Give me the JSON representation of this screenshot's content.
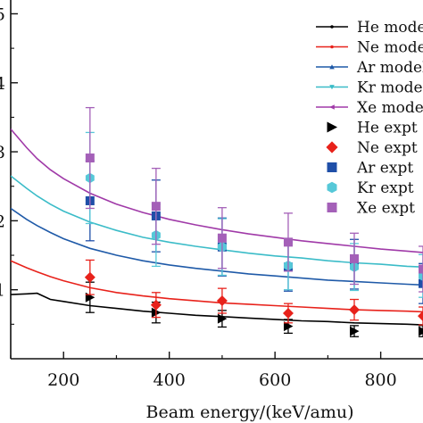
{
  "chart_data": {
    "type": "line",
    "title": "",
    "xlabel": "Beam energy/(keV/amu)",
    "ylabel": "",
    "xlim": [
      100,
      880
    ],
    "ylim": [
      0,
      5.2
    ],
    "x_ticks": [
      200,
      400,
      600,
      800
    ],
    "y_ticks": [
      1,
      2,
      3,
      4,
      5
    ],
    "y_tick_labels": [
      "1",
      "2",
      "3",
      "4",
      "5"
    ],
    "grid": false,
    "legend_position": "top-right",
    "model_x": [
      100,
      130,
      150,
      175,
      200,
      250,
      300,
      350,
      400,
      450,
      500,
      550,
      600,
      650,
      700,
      750,
      800,
      850,
      880
    ],
    "series": [
      {
        "name": "He model",
        "kind": "model",
        "color": "#000000",
        "marker": "circle",
        "values": [
          0.93,
          0.94,
          0.95,
          0.86,
          0.83,
          0.77,
          0.73,
          0.69,
          0.66,
          0.63,
          0.61,
          0.59,
          0.57,
          0.55,
          0.54,
          0.52,
          0.51,
          0.5,
          0.49
        ]
      },
      {
        "name": "Ne model",
        "kind": "model",
        "color": "#e8221b",
        "marker": "circle",
        "values": [
          1.42,
          1.32,
          1.26,
          1.19,
          1.13,
          1.03,
          0.96,
          0.91,
          0.87,
          0.84,
          0.81,
          0.79,
          0.77,
          0.75,
          0.73,
          0.71,
          0.7,
          0.69,
          0.68
        ]
      },
      {
        "name": "Ar model",
        "kind": "model",
        "color": "#1f5aa8",
        "marker": "triangle-up",
        "values": [
          2.18,
          2.02,
          1.93,
          1.83,
          1.74,
          1.6,
          1.5,
          1.42,
          1.36,
          1.31,
          1.27,
          1.23,
          1.2,
          1.17,
          1.14,
          1.12,
          1.1,
          1.08,
          1.07
        ]
      },
      {
        "name": "Kr model",
        "kind": "model",
        "color": "#3bbcc8",
        "marker": "triangle-down",
        "values": [
          2.65,
          2.47,
          2.36,
          2.24,
          2.14,
          1.98,
          1.86,
          1.76,
          1.69,
          1.63,
          1.58,
          1.53,
          1.49,
          1.46,
          1.42,
          1.39,
          1.37,
          1.34,
          1.33
        ]
      },
      {
        "name": "Xe model",
        "kind": "model",
        "color": "#a03aa8",
        "marker": "triangle-left",
        "values": [
          3.33,
          3.06,
          2.9,
          2.74,
          2.61,
          2.4,
          2.24,
          2.12,
          2.02,
          1.94,
          1.87,
          1.81,
          1.76,
          1.71,
          1.67,
          1.63,
          1.59,
          1.56,
          1.54
        ]
      },
      {
        "name": "He expt",
        "kind": "expt",
        "color": "#000000",
        "marker": "triangle-right",
        "x": [
          250,
          375,
          500,
          625,
          750,
          880
        ],
        "values": [
          0.89,
          0.67,
          0.58,
          0.47,
          0.4,
          0.4
        ],
        "errors": [
          0.22,
          0.15,
          0.12,
          0.1,
          0.08,
          0.08
        ]
      },
      {
        "name": "Ne expt",
        "kind": "expt",
        "color": "#e8221b",
        "marker": "diamond",
        "x": [
          250,
          375,
          500,
          625,
          750,
          880
        ],
        "values": [
          1.18,
          0.78,
          0.84,
          0.66,
          0.71,
          0.62
        ],
        "errors": [
          0.25,
          0.18,
          0.18,
          0.14,
          0.15,
          0.13
        ]
      },
      {
        "name": "Ar expt",
        "kind": "expt",
        "color": "#1f4fa8",
        "marker": "square",
        "x": [
          250,
          375,
          500,
          625,
          750,
          880
        ],
        "values": [
          2.29,
          2.07,
          1.62,
          1.33,
          1.37,
          1.09
        ],
        "errors": [
          0.58,
          0.52,
          0.42,
          0.35,
          0.36,
          0.29
        ]
      },
      {
        "name": "Kr expt",
        "kind": "expt",
        "color": "#56c8d8",
        "marker": "hexagon",
        "x": [
          250,
          375,
          500,
          625,
          750,
          880
        ],
        "values": [
          2.62,
          1.79,
          1.62,
          1.35,
          1.33,
          1.2
        ],
        "errors": [
          0.66,
          0.45,
          0.41,
          0.35,
          0.34,
          0.31
        ]
      },
      {
        "name": "Xe expt",
        "kind": "expt",
        "color": "#a460b8",
        "marker": "square",
        "x": [
          250,
          375,
          500,
          625,
          750,
          880
        ],
        "values": [
          2.91,
          2.21,
          1.75,
          1.69,
          1.45,
          1.3
        ],
        "errors": [
          0.73,
          0.55,
          0.44,
          0.42,
          0.37,
          0.33
        ]
      }
    ]
  }
}
